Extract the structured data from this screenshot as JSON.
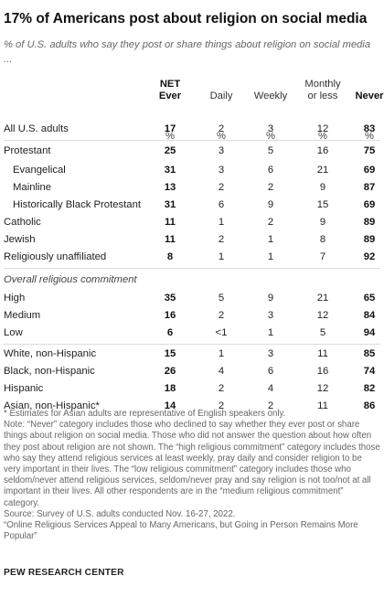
{
  "title": "17% of Americans post about religion on social media",
  "subtitle": "% of U.S. adults who say they post or share things about religion on social media ...",
  "chart_data": {
    "type": "table",
    "columns": [
      {
        "label": "NET Ever",
        "bold": true
      },
      {
        "label": "Daily",
        "bold": false
      },
      {
        "label": "Weekly",
        "bold": false
      },
      {
        "label": "Monthly or less",
        "bold": false
      },
      {
        "label": "Never",
        "bold": true
      }
    ],
    "unit": "%",
    "rows": [
      {
        "label": "All U.S. adults",
        "values": [
          "17",
          "2",
          "3",
          "12",
          "83"
        ]
      },
      {
        "label": "Protestant",
        "values": [
          "25",
          "3",
          "5",
          "16",
          "75"
        ]
      },
      {
        "label": "Evangelical",
        "indent": true,
        "values": [
          "31",
          "3",
          "6",
          "21",
          "69"
        ]
      },
      {
        "label": "Mainline",
        "indent": true,
        "values": [
          "13",
          "2",
          "2",
          "9",
          "87"
        ]
      },
      {
        "label": "Historically Black Protestant",
        "indent": true,
        "values": [
          "31",
          "6",
          "9",
          "15",
          "69"
        ]
      },
      {
        "label": "Catholic",
        "values": [
          "11",
          "1",
          "2",
          "9",
          "89"
        ]
      },
      {
        "label": "Jewish",
        "values": [
          "11",
          "2",
          "1",
          "8",
          "89"
        ]
      },
      {
        "label": "Religiously unaffiliated",
        "values": [
          "8",
          "1",
          "1",
          "7",
          "92"
        ]
      },
      {
        "label": "Overall religious commitment",
        "section": true,
        "values": []
      },
      {
        "label": "High",
        "values": [
          "35",
          "5",
          "9",
          "21",
          "65"
        ]
      },
      {
        "label": "Medium",
        "values": [
          "16",
          "2",
          "3",
          "12",
          "84"
        ]
      },
      {
        "label": "Low",
        "values": [
          "6",
          "<1",
          "1",
          "5",
          "94"
        ]
      },
      {
        "label": "White, non-Hispanic",
        "values": [
          "15",
          "1",
          "3",
          "11",
          "85"
        ]
      },
      {
        "label": "Black, non-Hispanic",
        "values": [
          "26",
          "4",
          "6",
          "16",
          "74"
        ]
      },
      {
        "label": "Hispanic",
        "values": [
          "18",
          "2",
          "4",
          "12",
          "82"
        ]
      },
      {
        "label": "Asian, non-Hispanic*",
        "values": [
          "14",
          "2",
          "2",
          "11",
          "86"
        ]
      }
    ]
  },
  "notes": [
    "* Estimates for Asian adults are representative of English speakers only.",
    "Note: “Never” category includes those who declined to say whether they ever post or share things about religion on social media. Those who did not answer the question about how often they post about religion are not shown. The “high religious commitment” category includes those who say they attend religious services at least weekly, pray daily and consider religion to be very important in their lives. The “low religious commitment” category includes those who seldom/never attend religious services, seldom/never pray and say religion is not too/not at all important in their lives. All other respondents are in the “medium religious commitment” category.",
    "Source: Survey of U.S. adults conducted Nov. 16-27, 2022.",
    "“Online Religious Services Appeal to Many Americans, but Going in Person Remains More Popular”"
  ],
  "footer": "PEW RESEARCH CENTER"
}
